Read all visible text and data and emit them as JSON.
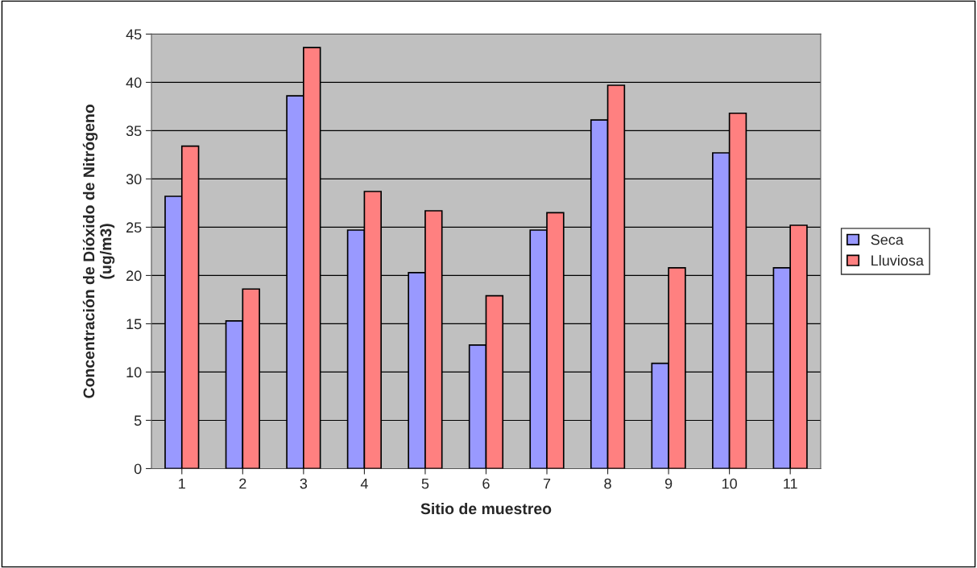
{
  "chart_data": {
    "type": "bar",
    "xlabel": "Sitio de muestreo",
    "ylabel": "Concentración de Dióxido de Nitrógeno\n(ug/m3)",
    "categories": [
      "1",
      "2",
      "3",
      "4",
      "5",
      "6",
      "7",
      "8",
      "9",
      "10",
      "11"
    ],
    "series": [
      {
        "name": "Seca",
        "color": "#9999ff",
        "values": [
          28.2,
          15.3,
          38.6,
          24.7,
          20.3,
          12.8,
          24.7,
          36.1,
          10.9,
          32.7,
          20.8
        ]
      },
      {
        "name": "Lluviosa",
        "color": "#ff8080",
        "values": [
          33.4,
          18.6,
          43.6,
          28.7,
          26.7,
          17.9,
          26.5,
          39.7,
          20.8,
          36.8,
          25.2
        ]
      }
    ],
    "ylim": [
      0,
      45
    ],
    "yticks": [
      0,
      5,
      10,
      15,
      20,
      25,
      30,
      35,
      40,
      45
    ],
    "grid": "y",
    "legend": "right"
  }
}
